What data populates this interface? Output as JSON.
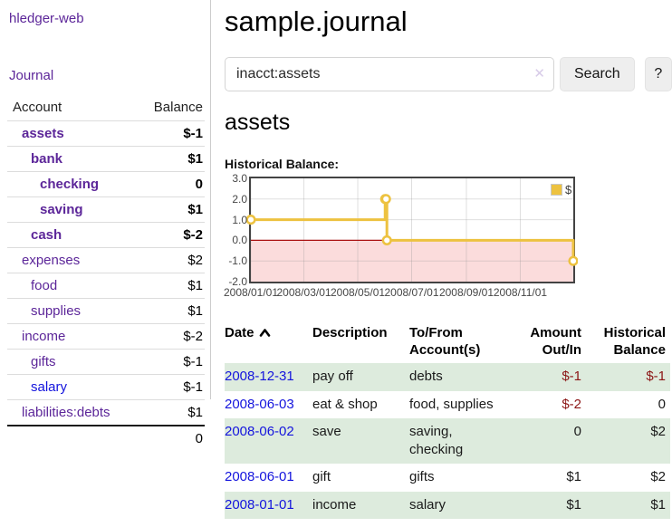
{
  "app_title": "hledger-web",
  "sidebar": {
    "journal_link": "Journal",
    "accounts_table": {
      "account_header": "Account",
      "balance_header": "Balance",
      "rows": [
        {
          "name": "assets",
          "balance": "$-1",
          "level": 1,
          "bold": true,
          "balance_style": "neg-strong"
        },
        {
          "name": "bank",
          "balance": "$1",
          "level": 2,
          "bold": true,
          "balance_style": "pos"
        },
        {
          "name": "checking",
          "balance": "0",
          "level": 3,
          "bold": true,
          "balance_style": "pos"
        },
        {
          "name": "saving",
          "balance": "$1",
          "level": 3,
          "bold": true,
          "balance_style": "pos"
        },
        {
          "name": "cash",
          "balance": "$-2",
          "level": 2,
          "bold": true,
          "balance_style": "neg-strong"
        },
        {
          "name": "expenses",
          "balance": "$2",
          "level": 1,
          "bold": false,
          "balance_style": "pos"
        },
        {
          "name": "food",
          "balance": "$1",
          "level": 2,
          "bold": false,
          "balance_style": "pos"
        },
        {
          "name": "supplies",
          "balance": "$1",
          "level": 2,
          "bold": false,
          "balance_style": "pos"
        },
        {
          "name": "income",
          "balance": "$-2",
          "level": 1,
          "bold": false,
          "balance_style": "neg-soft"
        },
        {
          "name": "gifts",
          "balance": "$-1",
          "level": 2,
          "bold": false,
          "balance_style": "neg-soft"
        },
        {
          "name": "salary",
          "balance": "$-1",
          "level": 2,
          "bold": false,
          "balance_style": "neg-soft",
          "link_style": "blue"
        },
        {
          "name": "liabilities:debts",
          "balance": "$1",
          "level": 1,
          "bold": false,
          "balance_style": "pos"
        }
      ],
      "total": "0"
    }
  },
  "main": {
    "title": "sample.journal",
    "search": {
      "value": "inacct:assets",
      "clear_icon": "✕",
      "search_button": "Search",
      "help_button": "?"
    },
    "account_heading": "assets",
    "chart_title": "Historical Balance:"
  },
  "chart_data": {
    "type": "line",
    "step": true,
    "title": "Historical Balance",
    "series": [
      {
        "name": "$",
        "color": "#EDC240",
        "points": [
          [
            "2008-01-01",
            1
          ],
          [
            "2008-06-01",
            2
          ],
          [
            "2008-06-02",
            2
          ],
          [
            "2008-06-03",
            0
          ],
          [
            "2008-12-31",
            -1
          ]
        ]
      }
    ],
    "x_range": [
      "2008-01-01",
      "2008-12-31"
    ],
    "ylim": [
      -2,
      3
    ],
    "y_ticks": [
      {
        "label": "3.0",
        "value": 3
      },
      {
        "label": "2.0",
        "value": 2
      },
      {
        "label": "1.0",
        "value": 1
      },
      {
        "label": "0.0",
        "value": 0
      },
      {
        "label": "-1.0",
        "value": -1
      },
      {
        "label": "-2.0",
        "value": -2
      }
    ],
    "x_ticks": [
      {
        "label": "2008/01/01",
        "date": "2008-01-01"
      },
      {
        "label": "2008/03/01",
        "date": "2008-03-01"
      },
      {
        "label": "2008/05/01",
        "date": "2008-05-01"
      },
      {
        "label": "2008/07/01",
        "date": "2008-07-01"
      },
      {
        "label": "2008/09/01",
        "date": "2008-09-01"
      },
      {
        "label": "2008/11/01",
        "date": "2008-11-01"
      }
    ],
    "legend": {
      "label": "$",
      "position": "top-right"
    },
    "grid": true,
    "negative_region_color": "#FBDCDC",
    "zero_line_color": "#AA1111",
    "border_color": "#434343"
  },
  "register": {
    "headers": [
      {
        "label": "Date",
        "sort_icon": "chevron-up"
      },
      {
        "label": "Description"
      },
      {
        "label": "To/From Account(s)"
      },
      {
        "label": "Amount Out/In"
      },
      {
        "label": "Historical Balance"
      }
    ],
    "rows": [
      {
        "date": "2008-12-31",
        "description": "pay off",
        "accounts": "debts",
        "amount": "$-1",
        "amount_negative": true,
        "balance": "$-1",
        "balance_negative": true
      },
      {
        "date": "2008-06-03",
        "description": "eat & shop",
        "accounts": "food, supplies",
        "amount": "$-2",
        "amount_negative": true,
        "balance": "0",
        "balance_negative": false
      },
      {
        "date": "2008-06-02",
        "description": "save",
        "accounts": "saving, checking",
        "amount": "0",
        "amount_negative": false,
        "balance": "$2",
        "balance_negative": false
      },
      {
        "date": "2008-06-01",
        "description": "gift",
        "accounts": "gifts",
        "amount": "$1",
        "amount_negative": false,
        "balance": "$2",
        "balance_negative": false
      },
      {
        "date": "2008-01-01",
        "description": "income",
        "accounts": "salary",
        "amount": "$1",
        "amount_negative": false,
        "balance": "$1",
        "balance_negative": false
      }
    ]
  },
  "colors": {
    "link_purple": "#5C2699",
    "link_blue": "#1414DD",
    "negative_strong": "#8B1515",
    "negative_soft": "#BF7D7D",
    "row_green": "#DDEBDD",
    "chart_yellow": "#EDC240",
    "chart_negative_fill": "#FBDCDC",
    "chart_zero_line": "#AA1111"
  }
}
